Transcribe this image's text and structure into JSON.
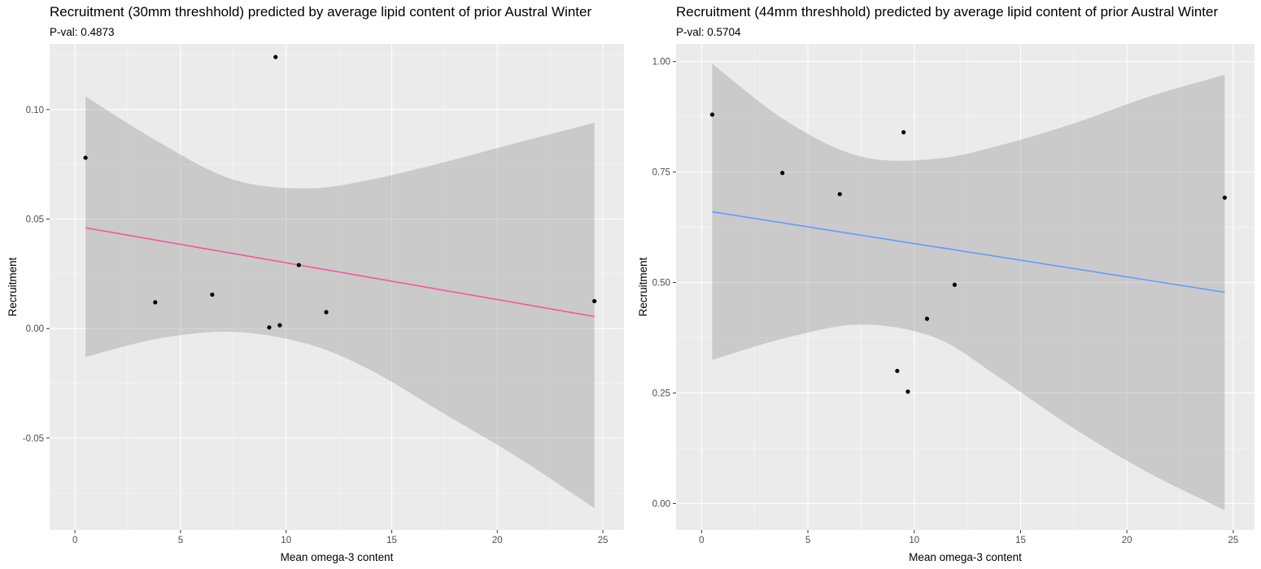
{
  "chart_data": [
    {
      "type": "scatter",
      "title": "Recruitment (30mm threshhold) predicted by average lipid content of prior Austral Winter",
      "subtitle": "P-val:  0.4873",
      "xlabel": "Mean omega-3 content",
      "ylabel": "Recruitment",
      "xlim": [
        -1.2,
        26.0
      ],
      "ylim": [
        -0.092,
        0.13
      ],
      "x_ticks": [
        0,
        5,
        10,
        15,
        20,
        25
      ],
      "x_tick_labels": [
        "0",
        "5",
        "10",
        "15",
        "20",
        "25"
      ],
      "y_ticks": [
        -0.05,
        0.0,
        0.05,
        0.1
      ],
      "y_tick_labels": [
        "-0.05",
        "0.00",
        "0.05",
        "0.10"
      ],
      "grid": true,
      "points": [
        {
          "x": 0.5,
          "y": 0.078
        },
        {
          "x": 3.8,
          "y": 0.012
        },
        {
          "x": 6.5,
          "y": 0.0155
        },
        {
          "x": 9.2,
          "y": 0.0005
        },
        {
          "x": 9.5,
          "y": 0.124
        },
        {
          "x": 9.7,
          "y": 0.0015
        },
        {
          "x": 10.6,
          "y": 0.029
        },
        {
          "x": 11.9,
          "y": 0.0075
        },
        {
          "x": 24.6,
          "y": 0.0125
        }
      ],
      "fit": {
        "color": "#f8559f",
        "x": [
          0.5,
          24.6
        ],
        "y": [
          0.046,
          0.0055
        ]
      },
      "band": {
        "color": "#999999",
        "x": [
          0.5,
          4,
          7.5,
          11,
          14,
          17.5,
          21,
          24.6
        ],
        "lower": [
          -0.013,
          -0.0045,
          -0.0015,
          -0.007,
          -0.019,
          -0.039,
          -0.059,
          -0.082
        ],
        "upper": [
          0.106,
          0.085,
          0.068,
          0.064,
          0.068,
          0.076,
          0.085,
          0.094
        ]
      }
    },
    {
      "type": "scatter",
      "title": "Recruitment (44mm threshhold) predicted by average lipid content of prior Austral Winter",
      "subtitle": "P-val:  0.5704",
      "xlabel": "Mean omega-3 content",
      "ylabel": "Recruitment",
      "xlim": [
        -1.2,
        26.0
      ],
      "ylim": [
        -0.06,
        1.04
      ],
      "x_ticks": [
        0,
        5,
        10,
        15,
        20,
        25
      ],
      "x_tick_labels": [
        "0",
        "5",
        "10",
        "15",
        "20",
        "25"
      ],
      "y_ticks": [
        0.0,
        0.25,
        0.5,
        0.75,
        1.0
      ],
      "y_tick_labels": [
        "0.00",
        "0.25",
        "0.50",
        "0.75",
        "1.00"
      ],
      "grid": true,
      "points": [
        {
          "x": 0.5,
          "y": 0.88
        },
        {
          "x": 3.8,
          "y": 0.748
        },
        {
          "x": 6.5,
          "y": 0.7
        },
        {
          "x": 9.2,
          "y": 0.3
        },
        {
          "x": 9.5,
          "y": 0.84
        },
        {
          "x": 9.7,
          "y": 0.253
        },
        {
          "x": 10.6,
          "y": 0.418
        },
        {
          "x": 11.9,
          "y": 0.495
        },
        {
          "x": 24.6,
          "y": 0.692
        }
      ],
      "fit": {
        "color": "#619cff",
        "x": [
          0.5,
          24.6
        ],
        "y": [
          0.66,
          0.478
        ]
      },
      "band": {
        "color": "#999999",
        "x": [
          0.5,
          4,
          7.5,
          11,
          14,
          17.5,
          21,
          24.6
        ],
        "lower": [
          0.325,
          0.375,
          0.405,
          0.375,
          0.285,
          0.17,
          0.07,
          -0.015
        ],
        "upper": [
          0.995,
          0.865,
          0.785,
          0.78,
          0.81,
          0.86,
          0.92,
          0.97
        ]
      }
    }
  ]
}
